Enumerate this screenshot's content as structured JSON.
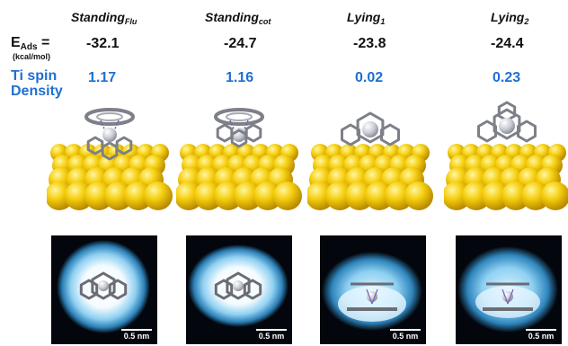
{
  "columns": [
    {
      "title": "Standing",
      "title_sub": "Flu",
      "energy": "-32.1",
      "spin": "1.17",
      "scalebar": "0.5 nm"
    },
    {
      "title": "Standing",
      "title_sub": "cot",
      "energy": "-24.7",
      "spin": "1.16",
      "scalebar": "0.5 nm"
    },
    {
      "title": "Lying",
      "title_sub": "1",
      "energy": "-23.8",
      "spin": "0.02",
      "scalebar": "0.5 nm"
    },
    {
      "title": "Lying",
      "title_sub": "2",
      "energy": "-24.4",
      "spin": "0.23",
      "scalebar": "0.5 nm"
    }
  ],
  "row_labels": {
    "energy_main": "E",
    "energy_sub": "Ads",
    "energy_eq": " =",
    "energy_unit": "(kcal/mol)",
    "spin_line1": "Ti spin",
    "spin_line2": "Density"
  },
  "colors": {
    "spin_text": "#1f6fd1",
    "gold": "#f2c500",
    "stm_bg": "#03060c",
    "stm_glow": "#62b6e6"
  }
}
